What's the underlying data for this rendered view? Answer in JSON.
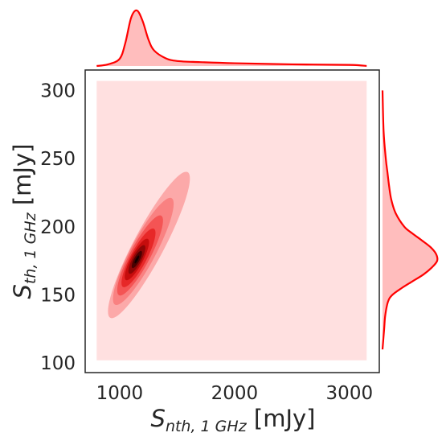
{
  "chart_data": {
    "type": "kde-jointplot",
    "title": "",
    "x": {
      "label_symbol": "S",
      "label_subscript": "nth, 1 GHz",
      "label_unit": " [mJy]",
      "range": [
        700,
        3260
      ],
      "ticks": [
        1000,
        2000,
        3000
      ],
      "tick_labels": [
        "1000",
        "2000",
        "3000"
      ]
    },
    "y": {
      "label_symbol": "S",
      "label_subscript": "th, 1 GHz",
      "label_unit": " [mJy]",
      "range": [
        93,
        315
      ],
      "ticks": [
        100,
        150,
        200,
        250,
        300
      ],
      "tick_labels": [
        "100",
        "150",
        "200",
        "250",
        "300"
      ]
    },
    "grid": false,
    "color": "#ff0000",
    "joint": {
      "background_region": {
        "x": [
          800,
          3150
        ],
        "y": [
          102,
          307
        ]
      },
      "peak": {
        "x": 1150,
        "y": 176
      },
      "orientation_deg": 62,
      "levels": [
        {
          "a": 205,
          "b": 38,
          "dx": 15,
          "dy": 18,
          "color": "#fca9a9"
        },
        {
          "a": 150,
          "b": 31,
          "dx": 8,
          "dy": 10,
          "color": "#f98181"
        },
        {
          "a": 112,
          "b": 25,
          "dx": 4,
          "dy": 5,
          "color": "#f45454"
        },
        {
          "a": 82,
          "b": 20,
          "dx": 2,
          "dy": 2,
          "color": "#e72828"
        },
        {
          "a": 58,
          "b": 15,
          "dx": 0,
          "dy": 0,
          "color": "#c60d0d"
        },
        {
          "a": 40,
          "b": 11,
          "dx": 0,
          "dy": 0,
          "color": "#8e0606"
        },
        {
          "a": 24,
          "b": 7,
          "dx": 0,
          "dy": 0,
          "color": "#4a0101"
        },
        {
          "a": 11,
          "b": 3,
          "dx": 0,
          "dy": 0,
          "color": "#120000"
        }
      ]
    },
    "marginal_x": {
      "x": [
        800,
        900,
        1000,
        1050,
        1100,
        1150,
        1200,
        1250,
        1300,
        1400,
        1500,
        1700,
        2000,
        2500,
        3000,
        3150
      ],
      "density": [
        0.0,
        0.03,
        0.13,
        0.42,
        0.87,
        1.0,
        0.81,
        0.48,
        0.28,
        0.14,
        0.09,
        0.07,
        0.05,
        0.03,
        0.02,
        0.0
      ]
    },
    "marginal_y": {
      "y": [
        110,
        125,
        135,
        145,
        150,
        155,
        160,
        165,
        170,
        175,
        180,
        185,
        190,
        195,
        200,
        210,
        220,
        230,
        240,
        250,
        270,
        300
      ],
      "density": [
        0.0,
        0.03,
        0.05,
        0.1,
        0.18,
        0.35,
        0.55,
        0.75,
        0.9,
        1.0,
        0.98,
        0.88,
        0.72,
        0.55,
        0.4,
        0.24,
        0.16,
        0.12,
        0.09,
        0.06,
        0.02,
        0.0
      ]
    }
  }
}
